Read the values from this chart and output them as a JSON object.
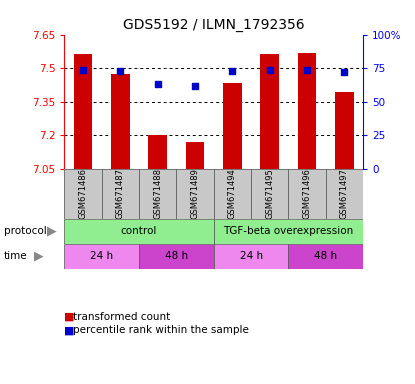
{
  "title": "GDS5192 / ILMN_1792356",
  "samples": [
    "GSM671486",
    "GSM671487",
    "GSM671488",
    "GSM671489",
    "GSM671494",
    "GSM671495",
    "GSM671496",
    "GSM671497"
  ],
  "transformed_count": [
    7.562,
    7.473,
    7.202,
    7.172,
    7.432,
    7.562,
    7.568,
    7.392
  ],
  "percentile_rank": [
    74,
    73,
    63,
    62,
    73,
    74,
    74,
    72
  ],
  "ylim_left": [
    7.05,
    7.65
  ],
  "ylim_right": [
    0,
    100
  ],
  "yticks_left": [
    7.05,
    7.2,
    7.35,
    7.5,
    7.65
  ],
  "yticks_right": [
    0,
    25,
    50,
    75,
    100
  ],
  "ytick_labels_right": [
    "0",
    "25",
    "50",
    "75",
    "100%"
  ],
  "bar_color": "#cc0000",
  "dot_color": "#0000cc",
  "bar_width": 0.5,
  "legend_red": "transformed count",
  "legend_blue": "percentile rank within the sample",
  "bg_color": "#ffffff",
  "plot_bg": "#ffffff",
  "sample_bg": "#c8c8c8",
  "protocol_color": "#90ee90",
  "time_color_light": "#ee88ee",
  "time_color_dark": "#cc44cc",
  "gridline_color": "#000000"
}
